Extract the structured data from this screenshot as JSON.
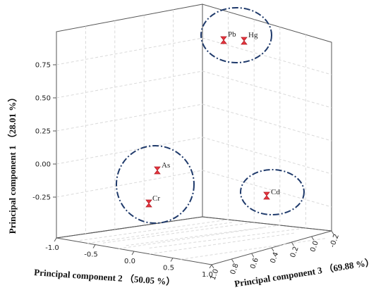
{
  "chart_data": {
    "type": "scatter",
    "projection": "3d",
    "axes": {
      "z": {
        "label": "Principal component 1 （28.01 %）",
        "range": [
          -0.35,
          0.95
        ],
        "ticks": [
          "0.75",
          "0.50",
          "0.25",
          "0.00",
          "-0.25"
        ]
      },
      "x": {
        "label": "Principal component 2 （50.05 %）",
        "range": [
          -1.0,
          1.0
        ],
        "ticks": [
          "-1.0",
          "-0.5",
          "0.0",
          "0.5",
          "1.0"
        ]
      },
      "y": {
        "label": "Principal component 3 （69.88 %）",
        "range": [
          -0.2,
          1.0
        ],
        "ticks": [
          "1.0",
          "0.8",
          "0.6",
          "0.4",
          "0.2",
          "0.0",
          "-0.2"
        ]
      }
    },
    "points": [
      {
        "label": "Pb",
        "pc1": 0.84,
        "pc2": 0.05,
        "pc3": -0.1
      },
      {
        "label": "Hg",
        "pc1": 0.85,
        "pc2": 0.15,
        "pc3": -0.15
      },
      {
        "label": "As",
        "pc1": -0.02,
        "pc2": -0.25,
        "pc3": 0.85
      },
      {
        "label": "Cr",
        "pc1": -0.26,
        "pc2": -0.45,
        "pc3": 0.8
      },
      {
        "label": "Cd",
        "pc1": -0.12,
        "pc2": 0.95,
        "pc3": 0.2
      }
    ],
    "clusters": [
      [
        "Pb",
        "Hg"
      ],
      [
        "As",
        "Cr"
      ],
      [
        "Cd"
      ]
    ],
    "grid": true,
    "colors": {
      "marker": "#e8343e",
      "cluster_outline": "#1f3a6b"
    }
  }
}
